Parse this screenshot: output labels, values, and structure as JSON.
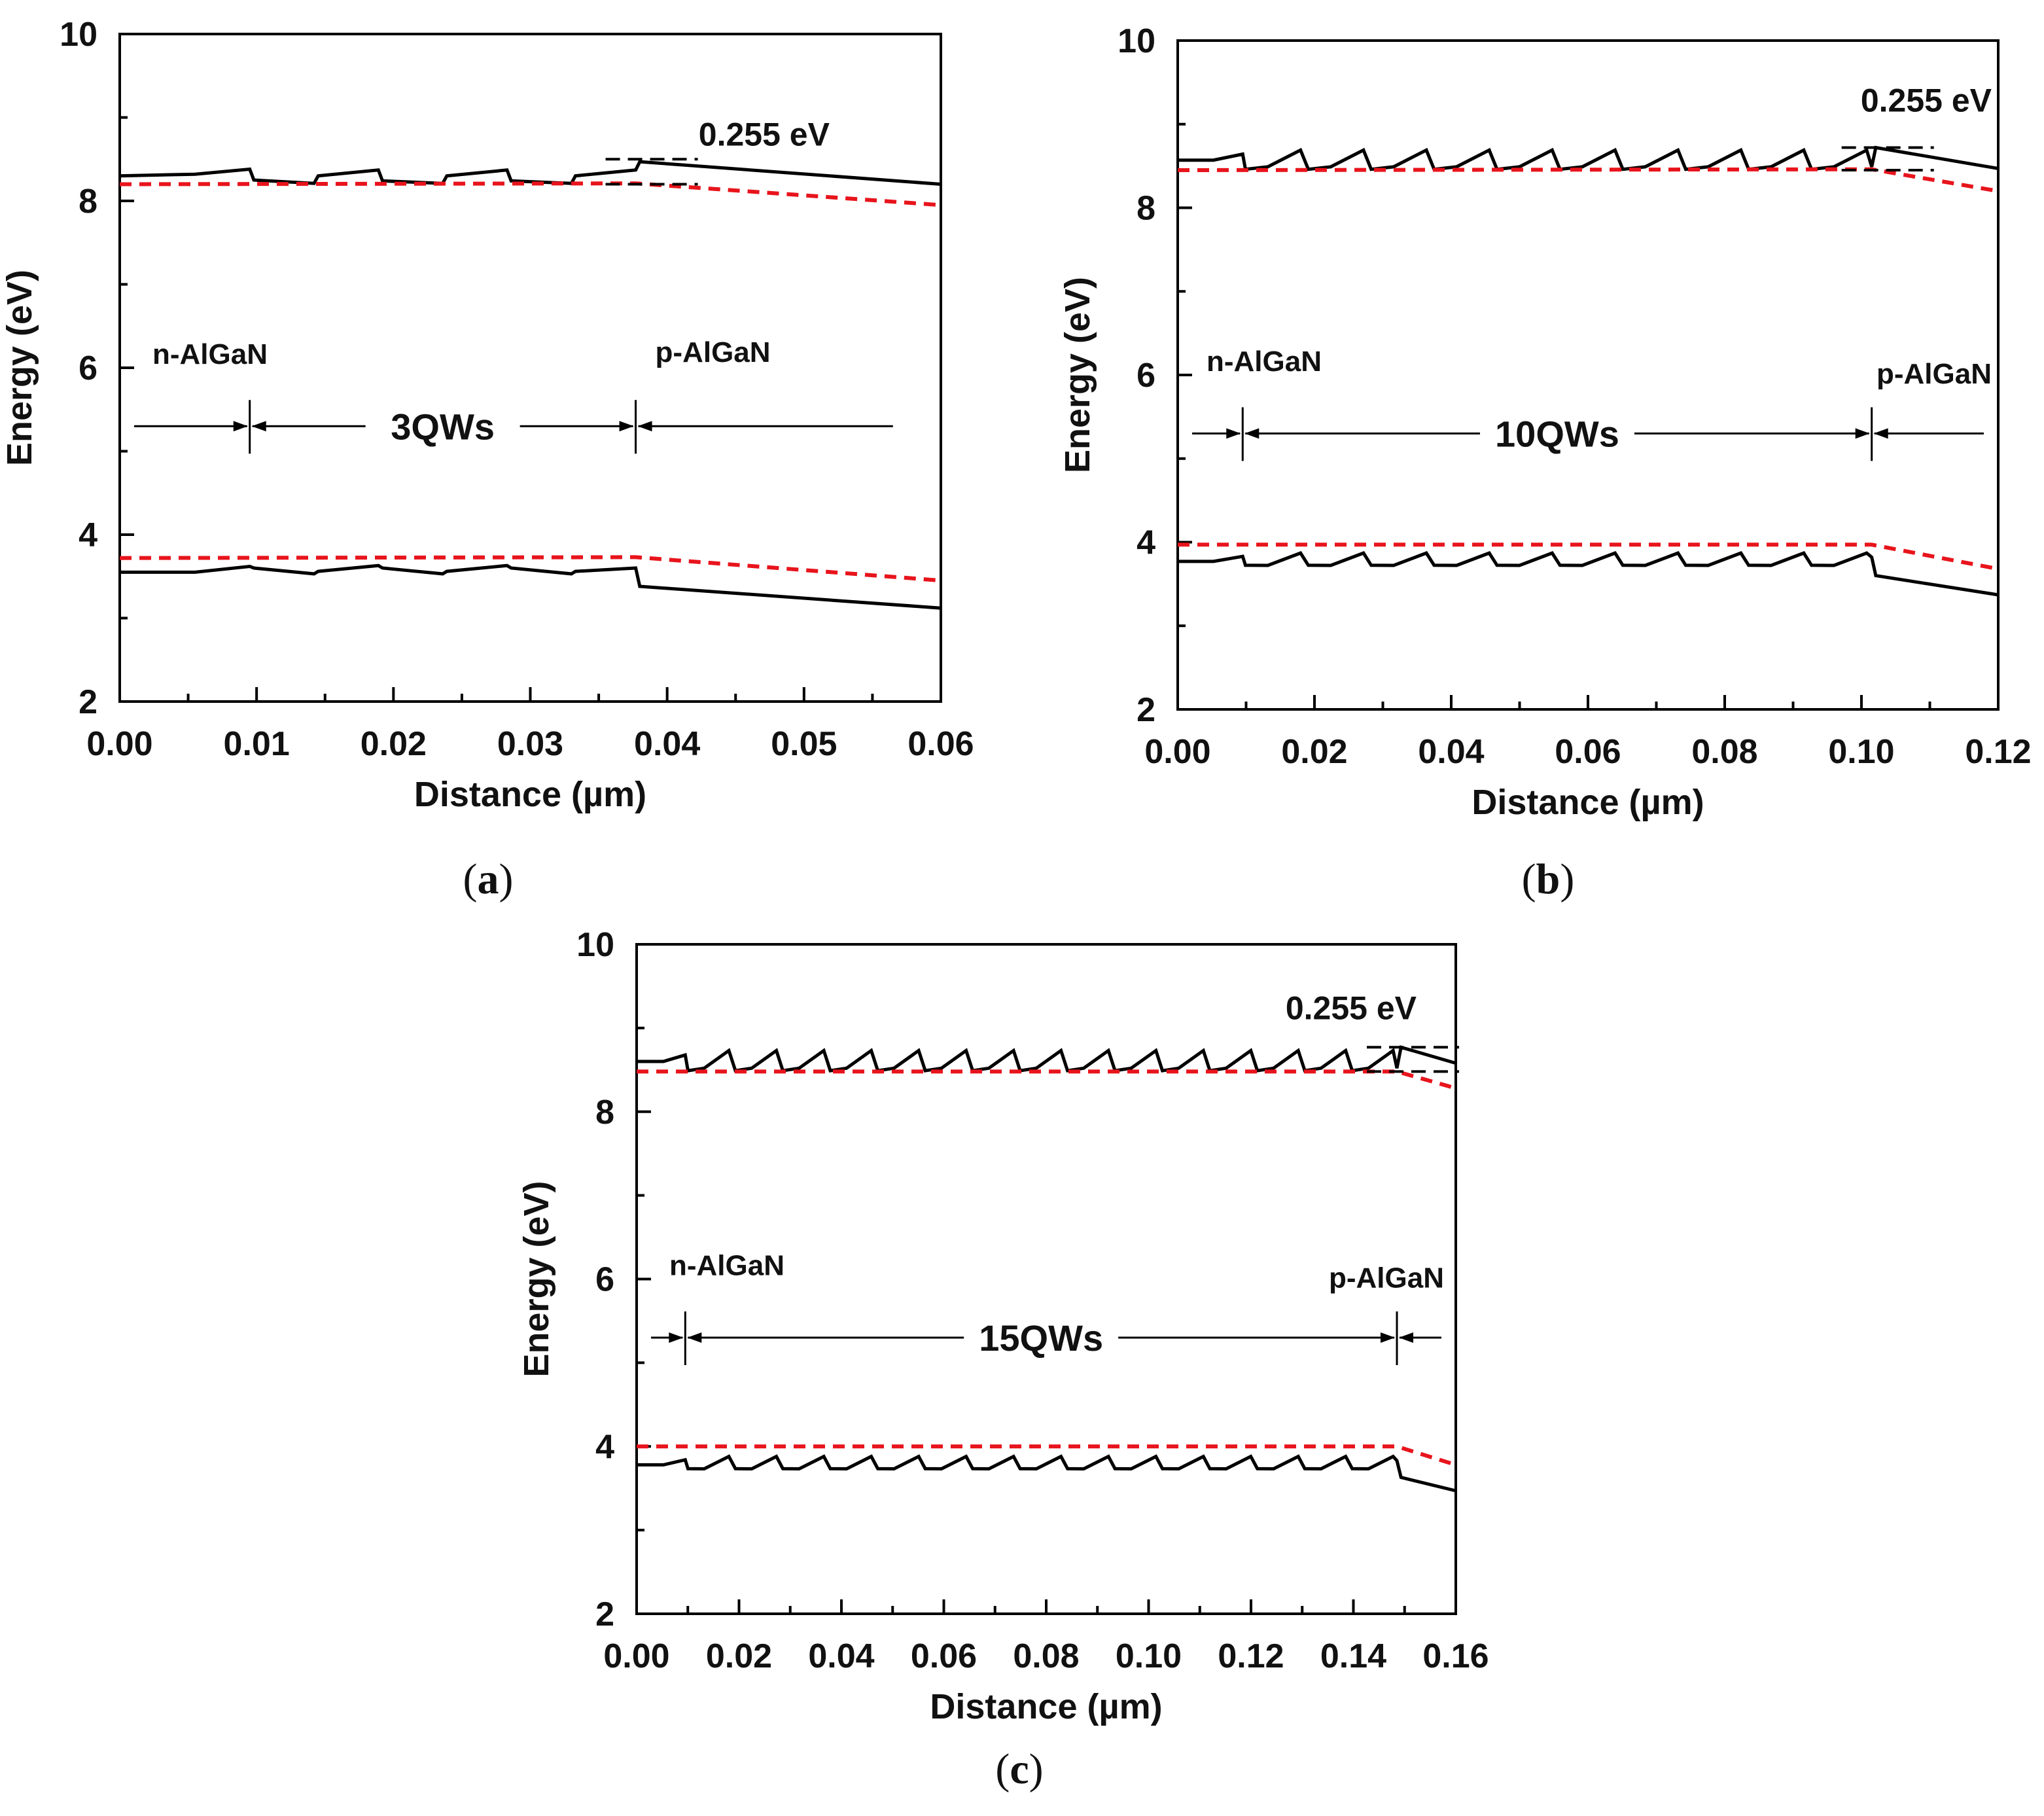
{
  "figure": {
    "colors": {
      "solid": "#000000",
      "dashed": "#e8141c",
      "axis": "#000000"
    }
  },
  "chart_data": [
    {
      "type": "line",
      "panel": "a",
      "caption_prefix": "(",
      "caption_letter": "a",
      "caption_suffix": ")",
      "xlabel": "Distance (µm)",
      "ylabel": "Energy (eV)",
      "xlim": [
        0,
        0.06
      ],
      "ylim": [
        2,
        10
      ],
      "xticks": [
        0.0,
        0.01,
        0.02,
        0.03,
        0.04,
        0.05,
        0.06
      ],
      "xtick_labels": [
        "0.00",
        "0.01",
        "0.02",
        "0.03",
        "0.04",
        "0.05",
        "0.06"
      ],
      "yticks": [
        2,
        4,
        6,
        8,
        10
      ],
      "ytick_labels": [
        "2",
        "4",
        "6",
        "8",
        "10"
      ],
      "num_qw": 3,
      "annotations": {
        "n_region": "n-AlGaN",
        "p_region": "p-AlGaN",
        "qw": "3QWs",
        "offset": "0.255 eV"
      },
      "n_boundary": 0.0095,
      "p_boundary": 0.0377,
      "series": [
        {
          "name": "conduction band (solid)",
          "style": "solid",
          "x": [
            0,
            0.0055,
            0.0095,
            0.0098,
            0.0142,
            0.0145,
            0.0189,
            0.0192,
            0.0236,
            0.0239,
            0.0283,
            0.0286,
            0.033,
            0.0333,
            0.0377,
            0.038,
            0.06
          ],
          "y": [
            8.3,
            8.32,
            8.38,
            8.25,
            8.21,
            8.3,
            8.37,
            8.24,
            8.21,
            8.3,
            8.37,
            8.24,
            8.21,
            8.3,
            8.37,
            8.47,
            8.2
          ]
        },
        {
          "name": "conduction band (dashed)",
          "style": "dashed",
          "x": [
            0,
            0.0377,
            0.06
          ],
          "y": [
            8.2,
            8.21,
            7.95
          ]
        },
        {
          "name": "valence band (solid)",
          "style": "solid",
          "x": [
            0,
            0.0055,
            0.0095,
            0.0098,
            0.0142,
            0.0145,
            0.0189,
            0.0192,
            0.0236,
            0.0239,
            0.0283,
            0.0286,
            0.033,
            0.0333,
            0.0377,
            0.038,
            0.06
          ],
          "y": [
            3.55,
            3.55,
            3.62,
            3.6,
            3.53,
            3.56,
            3.63,
            3.6,
            3.53,
            3.56,
            3.63,
            3.6,
            3.53,
            3.56,
            3.6,
            3.38,
            3.12
          ]
        },
        {
          "name": "valence band (dashed)",
          "style": "dashed",
          "x": [
            0,
            0.0377,
            0.06
          ],
          "y": [
            3.72,
            3.73,
            3.45
          ]
        }
      ]
    },
    {
      "type": "line",
      "panel": "b",
      "caption_prefix": "(",
      "caption_letter": "b",
      "caption_suffix": ")",
      "xlabel": "Distance (µm)",
      "ylabel": "Energy (eV)",
      "xlim": [
        0,
        0.12
      ],
      "ylim": [
        2,
        10
      ],
      "xticks": [
        0.0,
        0.02,
        0.04,
        0.06,
        0.08,
        0.1,
        0.12
      ],
      "xtick_labels": [
        "0.00",
        "0.02",
        "0.04",
        "0.06",
        "0.08",
        "0.10",
        "0.12"
      ],
      "yticks": [
        2,
        4,
        6,
        8,
        10
      ],
      "ytick_labels": [
        "2",
        "4",
        "6",
        "8",
        "10"
      ],
      "num_qw": 10,
      "annotations": {
        "n_region": "n-AlGaN",
        "p_region": "p-AlGaN",
        "qw": "10QWs",
        "offset": "0.255 eV"
      },
      "n_boundary": 0.0095,
      "p_boundary": 0.1015,
      "series": [
        {
          "name": "conduction band (solid)",
          "style": "solid",
          "generator": "sawtooth",
          "y_base": 8.57,
          "amp": 0.12,
          "drop": 0.2,
          "tail": [
            8.72,
            8.47
          ]
        },
        {
          "name": "conduction band (dashed)",
          "style": "dashed",
          "x": [
            0,
            0.1015,
            0.12
          ],
          "y": [
            8.45,
            8.46,
            8.2
          ]
        },
        {
          "name": "valence band (solid)",
          "style": "solid",
          "generator": "sawtooth_v",
          "y_base": 3.77,
          "amp": 0.1,
          "drop": 0.12,
          "tail": [
            3.6,
            3.37
          ]
        },
        {
          "name": "valence band (dashed)",
          "style": "dashed",
          "x": [
            0,
            0.1015,
            0.12
          ],
          "y": [
            3.97,
            3.97,
            3.68
          ]
        }
      ]
    },
    {
      "type": "line",
      "panel": "c",
      "caption_prefix": "(",
      "caption_letter": "c",
      "caption_suffix": ")",
      "xlabel": "Distance (µm)",
      "ylabel": "Energy (eV)",
      "xlim": [
        0,
        0.16
      ],
      "ylim": [
        2,
        10
      ],
      "xticks": [
        0.0,
        0.02,
        0.04,
        0.06,
        0.08,
        0.1,
        0.12,
        0.14,
        0.16
      ],
      "xtick_labels": [
        "0.00",
        "0.02",
        "0.04",
        "0.06",
        "0.08",
        "0.10",
        "0.12",
        "0.14",
        "0.16"
      ],
      "yticks": [
        2,
        4,
        6,
        8,
        10
      ],
      "ytick_labels": [
        "2",
        "4",
        "6",
        "8",
        "10"
      ],
      "num_qw": 15,
      "annotations": {
        "n_region": "n-AlGaN",
        "p_region": "p-AlGaN",
        "qw": "15QWs",
        "offset": "0.255 eV"
      },
      "n_boundary": 0.0095,
      "p_boundary": 0.1485,
      "series": [
        {
          "name": "conduction band (solid)",
          "style": "solid",
          "generator": "sawtooth",
          "y_base": 8.6,
          "amp": 0.13,
          "drop": 0.2,
          "tail": [
            8.77,
            8.58
          ]
        },
        {
          "name": "conduction band (dashed)",
          "style": "dashed",
          "x": [
            0,
            0.1485,
            0.16
          ],
          "y": [
            8.48,
            8.48,
            8.28
          ]
        },
        {
          "name": "valence band (solid)",
          "style": "solid",
          "generator": "sawtooth_v",
          "y_base": 3.78,
          "amp": 0.1,
          "drop": 0.12,
          "tail": [
            3.63,
            3.47
          ]
        },
        {
          "name": "valence band (dashed)",
          "style": "dashed",
          "x": [
            0,
            0.1485,
            0.16
          ],
          "y": [
            4.0,
            4.0,
            3.78
          ]
        }
      ]
    }
  ]
}
